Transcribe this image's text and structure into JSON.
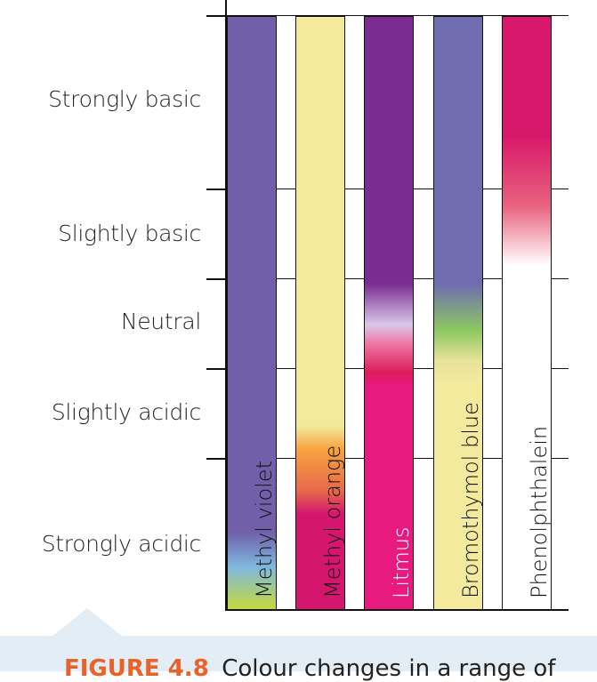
{
  "levels": [
    {
      "label": "Strongly basic"
    },
    {
      "label": "Slightly basic"
    },
    {
      "label": "Neutral"
    },
    {
      "label": "Slightly acidic"
    },
    {
      "label": "Strongly acidic"
    }
  ],
  "indicators": [
    {
      "name": "Methyl violet",
      "stops": [
        [
          "#7160a9",
          0
        ],
        [
          "#7160a9",
          0.87
        ],
        [
          "#7fb9df",
          0.93
        ],
        [
          "#c5d93a",
          1
        ]
      ]
    },
    {
      "name": "Methyl orange",
      "stops": [
        [
          "#f3ea9d",
          0
        ],
        [
          "#f3ea9d",
          0.69
        ],
        [
          "#f6a340",
          0.73
        ],
        [
          "#e76a4a",
          0.8
        ],
        [
          "#d4166f",
          0.84
        ],
        [
          "#d4166f",
          1
        ]
      ]
    },
    {
      "name": "Litmus",
      "stops": [
        [
          "#7a2c91",
          0
        ],
        [
          "#7a2c91",
          0.45
        ],
        [
          "#d9c8e8",
          0.52
        ],
        [
          "#ee7aa6",
          0.55
        ],
        [
          "#dc1e5a",
          0.6
        ],
        [
          "#e8197f",
          0.62
        ],
        [
          "#e8197f",
          1
        ]
      ]
    },
    {
      "name": "Bromothymol blue",
      "stops": [
        [
          "#6f6cb0",
          0
        ],
        [
          "#6f6cb0",
          0.45
        ],
        [
          "#8dc861",
          0.53
        ],
        [
          "#e7e39a",
          0.58
        ],
        [
          "#f3ea9d",
          0.62
        ],
        [
          "#f3ea9d",
          1
        ]
      ]
    },
    {
      "name": "Phenolphthalein",
      "stops": [
        [
          "#d8186a",
          0
        ],
        [
          "#d8186a",
          0.2
        ],
        [
          "#e8637f",
          0.32
        ],
        [
          "#ffffff",
          0.42
        ],
        [
          "#ffffff",
          1
        ]
      ]
    }
  ],
  "caption": {
    "number": "FIGURE 4.8",
    "text": "Colour changes in a range of"
  }
}
